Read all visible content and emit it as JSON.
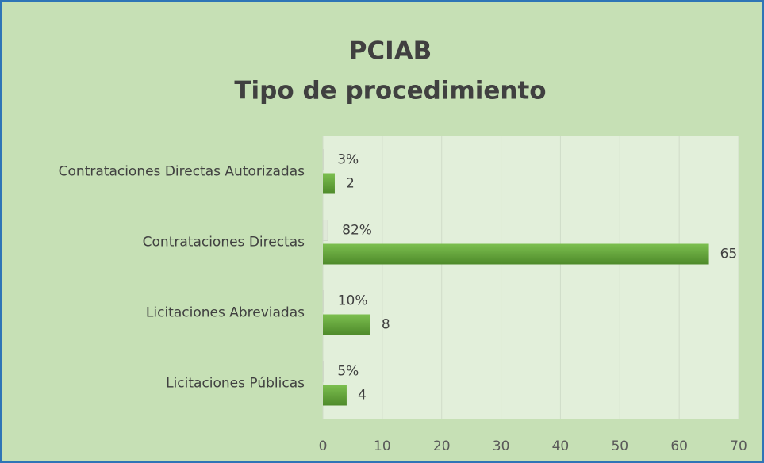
{
  "chart_data": {
    "type": "bar",
    "orientation": "horizontal",
    "title": [
      "PCIAB",
      "Tipo de procedimiento"
    ],
    "categories": [
      "Contrataciones Directas Autorizadas",
      "Contrataciones Directas",
      "Licitaciones  Abreviadas",
      "Licitaciones  Públicas"
    ],
    "series": [
      {
        "color": "#dfe8d8",
        "values": [
          0.03,
          0.82,
          0.1,
          0.05
        ],
        "value_labels": [
          "3%",
          "82%",
          "10%",
          "5%"
        ]
      },
      {
        "color": "#6aa83f",
        "values": [
          2,
          65,
          8,
          4
        ]
      }
    ],
    "xlim": [
      0,
      70
    ],
    "xticks": [
      0,
      10,
      20,
      30,
      40,
      50,
      60,
      70
    ],
    "grid": true
  }
}
